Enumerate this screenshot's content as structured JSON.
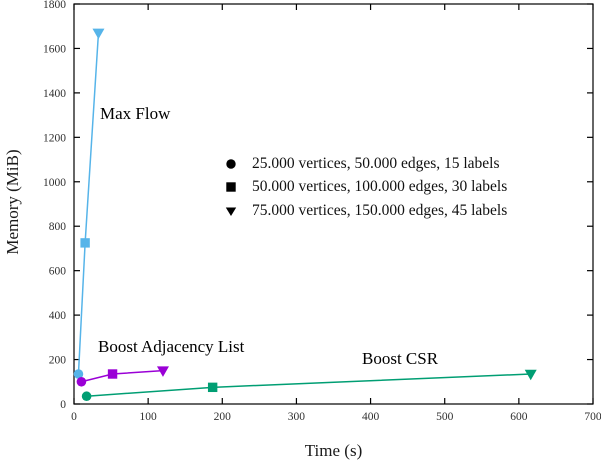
{
  "chart_data": {
    "type": "line",
    "title": "",
    "xlabel": "Time (s)",
    "ylabel": "Memory (MiB)",
    "xlim": [
      0,
      700
    ],
    "ylim": [
      0,
      1800
    ],
    "xticks": [
      0,
      100,
      200,
      300,
      400,
      500,
      600,
      700
    ],
    "yticks": [
      0,
      200,
      400,
      600,
      800,
      1000,
      1200,
      1400,
      1600,
      1800
    ],
    "grid": false,
    "legend_position": "inside upper-middle",
    "series": [
      {
        "name": "Max Flow",
        "color": "#56b4e9",
        "points": [
          {
            "x": 6,
            "y": 135,
            "marker": "circle"
          },
          {
            "x": 15,
            "y": 725,
            "marker": "square"
          },
          {
            "x": 33,
            "y": 1670,
            "marker": "triangle-down"
          }
        ]
      },
      {
        "name": "Boost Adjacency List",
        "color": "#9a00d6",
        "points": [
          {
            "x": 10,
            "y": 100,
            "marker": "circle"
          },
          {
            "x": 52,
            "y": 135,
            "marker": "square"
          },
          {
            "x": 120,
            "y": 150,
            "marker": "triangle-down"
          }
        ]
      },
      {
        "name": "Boost CSR",
        "color": "#009e73",
        "points": [
          {
            "x": 17,
            "y": 35,
            "marker": "circle"
          },
          {
            "x": 187,
            "y": 75,
            "marker": "square"
          },
          {
            "x": 616,
            "y": 135,
            "marker": "triangle-down"
          }
        ]
      }
    ],
    "legend": {
      "marker_color": "#000000",
      "items": [
        {
          "marker": "circle",
          "label": "25.000 vertices, 50.000 edges, 15 labels"
        },
        {
          "marker": "square",
          "label": "50.000 vertices, 100.000 edges, 30 labels"
        },
        {
          "marker": "triangle-down",
          "label": "75.000 vertices, 150.000 edges, 45 labels"
        }
      ]
    }
  },
  "figure": {
    "background": "#ffffff",
    "frame_color": "#000000",
    "tick_label_color": "#303030"
  }
}
